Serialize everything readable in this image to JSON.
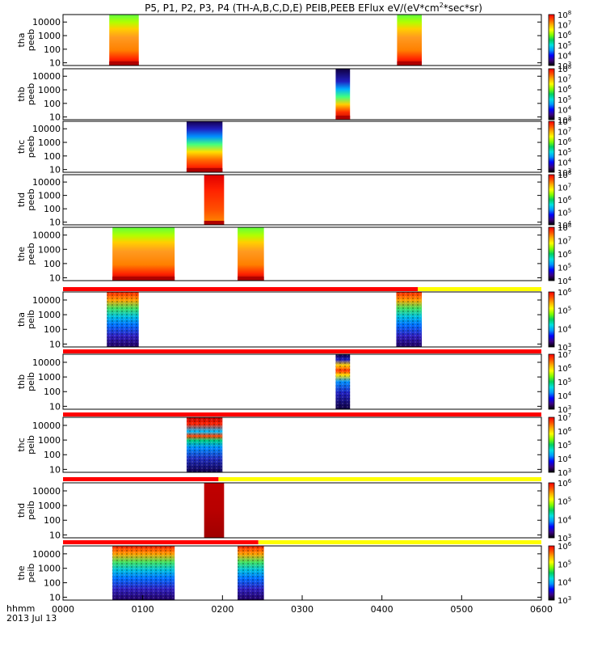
{
  "title": {
    "prefix": "P5, P1, P2, P3, P4 (TH-A,B,C,D,E) PEIB,PEEB EFlux eV/(eV*cm",
    "sup": "2",
    "suffix": "*sec*sr)"
  },
  "time_axis": {
    "label_line1": "hhmm",
    "label_line2": "2013 Jul 13"
  },
  "palette": [
    "#000000",
    "#3b0080",
    "#0000ff",
    "#0096ff",
    "#00e0e0",
    "#00d060",
    "#80ff00",
    "#ffff00",
    "#ffb000",
    "#ff5000",
    "#ff0000"
  ],
  "chart_data": {
    "type": "heatmap",
    "x_range_hours": [
      0,
      6
    ],
    "x_ticks": [
      "0000",
      "0100",
      "0200",
      "0300",
      "0400",
      "0500",
      "0600"
    ],
    "y_scale": "log",
    "y_ticks": [
      "10",
      "100",
      "1000",
      "10000"
    ],
    "panels": [
      {
        "id": "tha-peeb",
        "ylabel": [
          "tha",
          "peeb"
        ],
        "type": "electron",
        "bar": null,
        "cbar": {
          "min": 3,
          "max": 8,
          "labels": [
            "10",
            "10",
            "10",
            "10",
            "10",
            "10"
          ],
          "exps": [
            "3",
            "4",
            "5",
            "6",
            "7",
            "8"
          ]
        },
        "blocks": [
          {
            "t0": 0.58,
            "t1": 0.95,
            "style": "e_hot"
          },
          {
            "t0": 4.19,
            "t1": 4.5,
            "style": "e_hot"
          }
        ]
      },
      {
        "id": "thb-peeb",
        "ylabel": [
          "thb",
          "peeb"
        ],
        "type": "electron",
        "bar": null,
        "cbar": {
          "min": 3,
          "max": 8,
          "labels": [
            "10",
            "10",
            "10",
            "10",
            "10",
            "10"
          ],
          "exps": [
            "3",
            "4",
            "5",
            "6",
            "7",
            "8"
          ]
        },
        "blocks": [
          {
            "t0": 3.42,
            "t1": 3.6,
            "style": "e_inner"
          }
        ]
      },
      {
        "id": "thc-peeb",
        "ylabel": [
          "thc",
          "peeb"
        ],
        "type": "electron",
        "bar": null,
        "cbar": {
          "min": 3,
          "max": 8,
          "labels": [
            "10",
            "10",
            "10",
            "10",
            "10",
            "10"
          ],
          "exps": [
            "3",
            "4",
            "5",
            "6",
            "7",
            "8"
          ]
        },
        "blocks": [
          {
            "t0": 1.55,
            "t1": 2.0,
            "style": "e_cold"
          }
        ]
      },
      {
        "id": "thd-peeb",
        "ylabel": [
          "thd",
          "peeb"
        ],
        "type": "electron",
        "bar": null,
        "cbar": {
          "min": 4,
          "max": 8,
          "labels": [
            "10",
            "10",
            "10",
            "10",
            "10"
          ],
          "exps": [
            "4",
            "5",
            "6",
            "7",
            "8"
          ]
        },
        "blocks": [
          {
            "t0": 1.77,
            "t1": 2.02,
            "style": "e_warm"
          }
        ]
      },
      {
        "id": "the-peeb",
        "ylabel": [
          "the",
          "peeb"
        ],
        "type": "electron",
        "bar": null,
        "cbar": {
          "min": 4,
          "max": 8,
          "labels": [
            "10",
            "10",
            "10",
            "10",
            "10"
          ],
          "exps": [
            "4",
            "5",
            "6",
            "7",
            "8"
          ]
        },
        "blocks": [
          {
            "t0": 0.62,
            "t1": 1.4,
            "style": "e_hot"
          },
          {
            "t0": 2.19,
            "t1": 2.52,
            "style": "e_hot"
          }
        ]
      },
      {
        "id": "tha-peib",
        "ylabel": [
          "tha",
          "peib"
        ],
        "type": "ion",
        "bar": {
          "red_until": 4.45
        },
        "cbar": {
          "min": 3,
          "max": 6,
          "labels": [
            "10",
            "10",
            "10",
            "10"
          ],
          "exps": [
            "3",
            "4",
            "5",
            "6"
          ]
        },
        "blocks": [
          {
            "t0": 0.55,
            "t1": 0.95,
            "style": "i_mix"
          },
          {
            "t0": 4.18,
            "t1": 4.5,
            "style": "i_mix"
          }
        ]
      },
      {
        "id": "thb-peib",
        "ylabel": [
          "thb",
          "peib"
        ],
        "type": "ion",
        "bar": {
          "red_until": 6.0
        },
        "cbar": {
          "min": 3,
          "max": 7,
          "labels": [
            "10",
            "10",
            "10",
            "10",
            "10"
          ],
          "exps": [
            "3",
            "4",
            "5",
            "6",
            "7"
          ]
        },
        "blocks": [
          {
            "t0": 3.42,
            "t1": 3.6,
            "style": "i_inner"
          }
        ]
      },
      {
        "id": "thc-peib",
        "ylabel": [
          "thc",
          "peib"
        ],
        "type": "ion",
        "bar": {
          "red_until": 6.0
        },
        "cbar": {
          "min": 3,
          "max": 7,
          "labels": [
            "10",
            "10",
            "10",
            "10",
            "10"
          ],
          "exps": [
            "3",
            "4",
            "5",
            "6",
            "7"
          ]
        },
        "blocks": [
          {
            "t0": 1.55,
            "t1": 2.0,
            "style": "i_band"
          }
        ]
      },
      {
        "id": "thd-peib",
        "ylabel": [
          "thd",
          "peib"
        ],
        "type": "ion",
        "bar": {
          "red_until": 1.95
        },
        "cbar": {
          "min": 3,
          "max": 6,
          "labels": [
            "10",
            "10",
            "10",
            "10"
          ],
          "exps": [
            "3",
            "4",
            "5",
            "6"
          ]
        },
        "blocks": [
          {
            "t0": 1.77,
            "t1": 2.02,
            "style": "i_solid"
          }
        ]
      },
      {
        "id": "the-peib",
        "ylabel": [
          "the",
          "peib"
        ],
        "type": "ion",
        "bar": {
          "red_until": 2.45
        },
        "cbar": {
          "min": 3,
          "max": 6,
          "labels": [
            "10",
            "10",
            "10",
            "10"
          ],
          "exps": [
            "3",
            "4",
            "5",
            "6"
          ]
        },
        "blocks": [
          {
            "t0": 0.62,
            "t1": 1.4,
            "style": "i_mix"
          },
          {
            "t0": 2.19,
            "t1": 2.52,
            "style": "i_mix"
          }
        ]
      }
    ]
  }
}
